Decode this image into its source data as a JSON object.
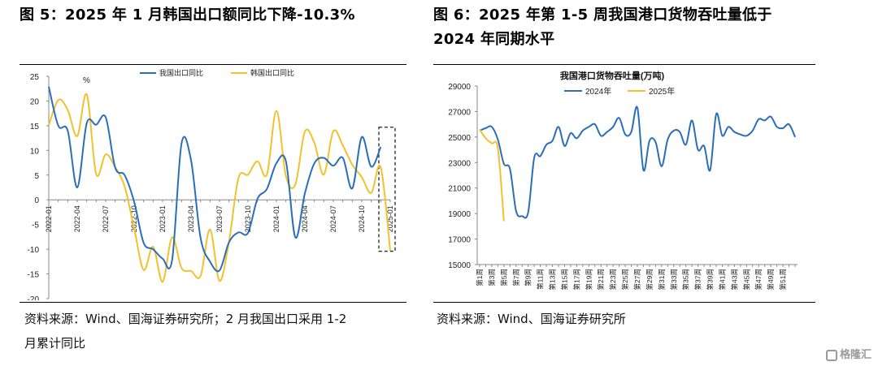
{
  "left": {
    "title": "图 5：2025 年 1 月韩国出口额同比下降-10.3%",
    "source": [
      "资料来源：Wind、国海证券研究所；2 月我国出口采用 1-2",
      "月累计同比"
    ],
    "chart_data": {
      "type": "line",
      "ylabel": "%",
      "ylim": [
        -20,
        25
      ],
      "yticks": [
        "25",
        "20",
        "15",
        "10",
        "5",
        "0",
        "-5",
        "-10",
        "-15",
        "-20"
      ],
      "x": [
        "2022-01",
        "2022-02",
        "2022-03",
        "2022-04",
        "2022-05",
        "2022-06",
        "2022-07",
        "2022-08",
        "2022-09",
        "2022-10",
        "2022-11",
        "2022-12",
        "2023-01",
        "2023-02",
        "2023-03",
        "2023-04",
        "2023-05",
        "2023-06",
        "2023-07",
        "2023-08",
        "2023-09",
        "2023-10",
        "2023-11",
        "2023-12",
        "2024-01",
        "2024-02",
        "2024-03",
        "2024-04",
        "2024-05",
        "2024-06",
        "2024-07",
        "2024-08",
        "2024-09",
        "2024-10",
        "2024-11",
        "2024-12",
        "2025-01"
      ],
      "xtick_labels": [
        "2022-01",
        "2022-04",
        "2022-07",
        "2022-10",
        "2023-01",
        "2023-04",
        "2023-07",
        "2023-10",
        "2024-01",
        "2024-04",
        "2024-07",
        "2024-10",
        "2025-01"
      ],
      "series": [
        {
          "name": "我国出口同比",
          "color": "#2a6ebb",
          "values": [
            22.9,
            15.0,
            14.0,
            2.5,
            15.5,
            15.2,
            16.7,
            6.5,
            5.0,
            -0.4,
            -8.7,
            -10.0,
            -11.9,
            -12.2,
            11.4,
            8.0,
            -7.7,
            -12.5,
            -14.3,
            -8.6,
            -6.6,
            -6.7,
            0.2,
            2.2,
            7.4,
            7.8,
            -7.6,
            1.3,
            7.4,
            8.5,
            6.9,
            8.5,
            2.3,
            12.7,
            6.7,
            10.7,
            null
          ]
        },
        {
          "name": "韩国出口同比",
          "color": "#f2c12e",
          "values": [
            15.1,
            20.2,
            18.2,
            12.9,
            21.3,
            5.2,
            9.2,
            6.6,
            2.7,
            -5.8,
            -14.2,
            -9.5,
            -16.6,
            -7.6,
            -13.8,
            -14.4,
            -15.4,
            -6.0,
            -16.4,
            -8.4,
            4.4,
            5.1,
            7.8,
            5.1,
            18.0,
            4.8,
            3.1,
            13.8,
            11.5,
            5.1,
            13.9,
            11.0,
            7.1,
            4.6,
            1.4,
            6.6,
            -10.3
          ]
        }
      ]
    }
  },
  "right": {
    "title": [
      "图 6：2025 年第 1-5 周我国港口货物吞吐量低于",
      "2024 年同期水平"
    ],
    "source": [
      "资料来源：Wind、国海证券研究所"
    ],
    "chart_data": {
      "type": "line",
      "title": "我国港口货物吞吐量(万吨)",
      "ylim": [
        15000,
        29000
      ],
      "yticks": [
        "29000",
        "27000",
        "25000",
        "23000",
        "21000",
        "19000",
        "17000",
        "15000"
      ],
      "x_labels": [
        "第1周",
        "第3周",
        "第5周",
        "第7周",
        "第9周",
        "第11周",
        "第13周",
        "第15周",
        "第17周",
        "第19周",
        "第21周",
        "第23周",
        "第25周",
        "第27周",
        "第29周",
        "第31周",
        "第33周",
        "第35周",
        "第37周",
        "第39周",
        "第41周",
        "第43周",
        "第45周",
        "第47周",
        "第49周",
        "第51周"
      ],
      "series": [
        {
          "name": "2024年",
          "color": "#2a6ebb",
          "values": [
            25500,
            25700,
            25800,
            24800,
            22900,
            22500,
            19200,
            18800,
            19100,
            23400,
            23500,
            24400,
            24700,
            25800,
            24300,
            25300,
            24900,
            25500,
            25800,
            26000,
            25100,
            25400,
            25800,
            26500,
            25200,
            25400,
            27300,
            22400,
            24700,
            24600,
            22700,
            24800,
            25500,
            25400,
            24400,
            26300,
            24000,
            24300,
            22400,
            26800,
            25100,
            25800,
            25400,
            25200,
            25100,
            25500,
            26400,
            26300,
            26600,
            25800,
            25700,
            26000,
            25000
          ]
        },
        {
          "name": "2025年",
          "color": "#f2c12e",
          "values": [
            25600,
            24900,
            24500,
            24100,
            18400
          ]
        }
      ]
    }
  }
}
